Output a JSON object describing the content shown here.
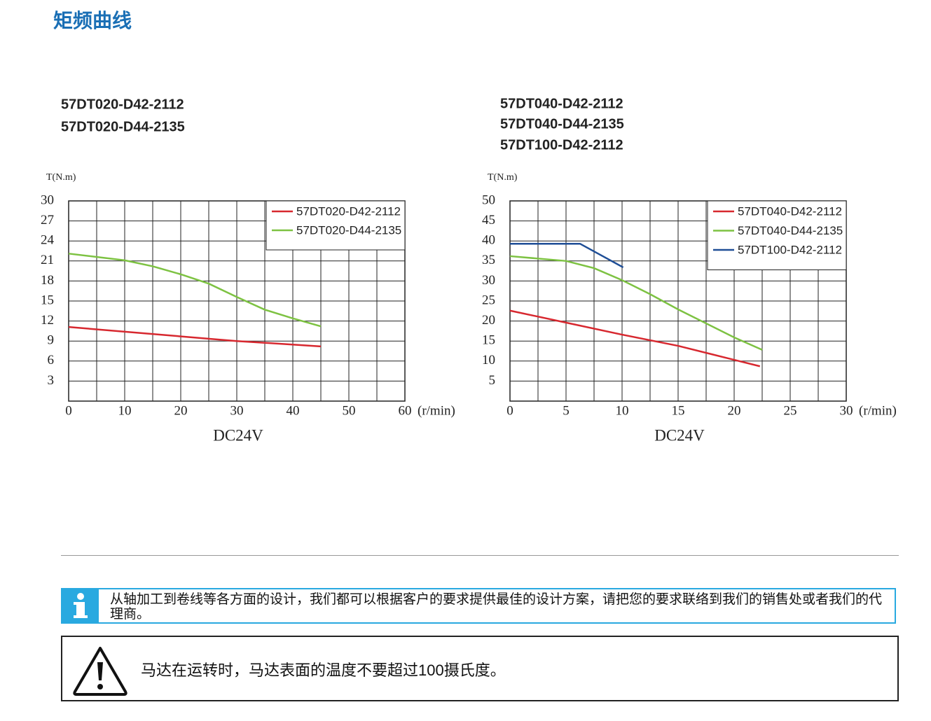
{
  "header": {
    "title": "矩频曲线"
  },
  "chart_data": [
    {
      "type": "line",
      "title_lines": [
        "57DT020-D42-2112",
        "57DT020-D44-2135"
      ],
      "y_label": "T(N.m)",
      "x_unit": "(r/min)",
      "x_label": "DC24V",
      "xlim": [
        0,
        60
      ],
      "xticks": [
        0,
        10,
        20,
        30,
        40,
        50,
        60
      ],
      "ylim": [
        0,
        30
      ],
      "yticks": [
        3,
        6,
        9,
        12,
        15,
        18,
        21,
        24,
        27,
        30
      ],
      "grid": true,
      "series": [
        {
          "name": "57DT020-D42-2112",
          "color": "#d7282f",
          "x": [
            0,
            30,
            45
          ],
          "values": [
            11.1,
            9,
            8.2
          ]
        },
        {
          "name": "57DT020-D44-2135",
          "color": "#7dc242",
          "x": [
            0,
            10,
            15,
            20,
            25,
            30,
            35,
            40,
            45
          ],
          "values": [
            22.1,
            21.1,
            20.2,
            19,
            17.6,
            15.6,
            13.7,
            12.4,
            11.2
          ]
        }
      ]
    },
    {
      "type": "line",
      "title_lines": [
        "57DT040-D42-2112",
        "57DT040-D44-2135",
        "57DT100-D42-2112"
      ],
      "y_label": "T(N.m)",
      "x_unit": "(r/min)",
      "x_label": "DC24V",
      "xlim": [
        0,
        30
      ],
      "xticks": [
        0,
        5,
        10,
        15,
        20,
        25,
        30
      ],
      "ylim": [
        0,
        50
      ],
      "yticks": [
        5,
        10,
        15,
        20,
        25,
        30,
        35,
        40,
        45,
        50
      ],
      "grid": true,
      "series": [
        {
          "name": "57DT040-D42-2112",
          "color": "#d7282f",
          "x": [
            0,
            5,
            10,
            15,
            20,
            22.3
          ],
          "values": [
            22.6,
            19.6,
            16.6,
            13.8,
            10.3,
            8.7
          ]
        },
        {
          "name": "57DT040-D44-2135",
          "color": "#7dc242",
          "x": [
            0,
            5,
            7.5,
            10,
            12.5,
            15,
            20,
            22.5
          ],
          "values": [
            36.2,
            35,
            33.2,
            30.2,
            26.7,
            22.9,
            15.9,
            12.8
          ]
        },
        {
          "name": "57DT100-D42-2112",
          "color": "#1f4e96",
          "x": [
            0,
            6.25,
            10.1
          ],
          "values": [
            39.3,
            39.3,
            33.4
          ]
        }
      ]
    }
  ],
  "notes": {
    "info": "从轴加工到卷线等各方面的设计，我们都可以根据客户的要求提供最佳的设计方案，请把您的要求联络到我们的销售处或者我们的代理商。",
    "warning": "马达在运转时，马达表面的温度不要超过100摄氏度。"
  }
}
